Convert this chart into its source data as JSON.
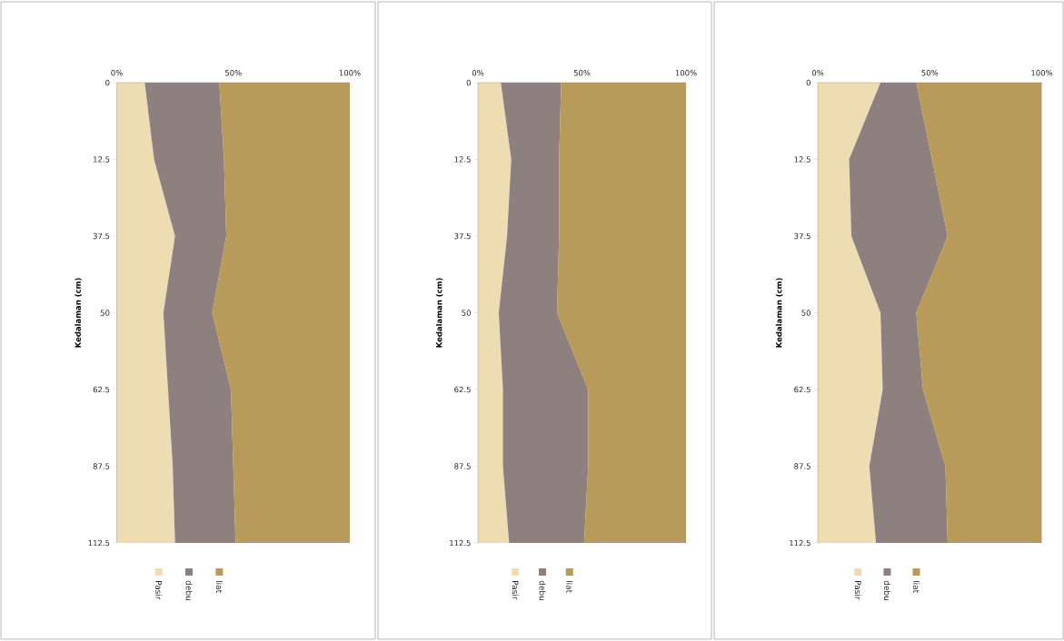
{
  "chart_data": [
    {
      "type": "area",
      "orientation": "horizontal",
      "stacked": true,
      "ylabel": "Kedalaman (cm)",
      "legend": "bottom",
      "categories": [
        "0",
        "12.5",
        "37.5",
        "50",
        "62.5",
        "87.5",
        "112.5"
      ],
      "xlim": [
        0,
        100
      ],
      "xticks": [
        {
          "value": 0,
          "label": "0%"
        },
        {
          "value": 50,
          "label": "50%"
        },
        {
          "value": 100,
          "label": "100%"
        }
      ],
      "series": [
        {
          "name": "Pasir",
          "color": "#eedcb3",
          "values": [
            12,
            16,
            25,
            20,
            22,
            24,
            25
          ]
        },
        {
          "name": "debu",
          "color": "#8f8080",
          "values": [
            32,
            30,
            22,
            21,
            27,
            26,
            26
          ]
        },
        {
          "name": "liat",
          "color": "#b89a5a",
          "values": [
            56,
            54,
            53,
            59,
            51,
            50,
            49
          ]
        }
      ]
    },
    {
      "type": "area",
      "orientation": "horizontal",
      "stacked": true,
      "ylabel": "Kedalaman (cm)",
      "legend": "bottom",
      "categories": [
        "0",
        "12.5",
        "37.5",
        "50",
        "62.5",
        "87.5",
        "112.5"
      ],
      "xlim": [
        0,
        100
      ],
      "xticks": [
        {
          "value": 0,
          "label": "0%"
        },
        {
          "value": 50,
          "label": "50%"
        },
        {
          "value": 100,
          "label": "100%"
        }
      ],
      "series": [
        {
          "name": "Pasir",
          "color": "#eedcb3",
          "values": [
            11,
            16,
            14,
            10,
            12,
            12,
            15
          ]
        },
        {
          "name": "debu",
          "color": "#8f8080",
          "values": [
            29,
            23,
            25,
            28,
            41,
            41,
            36
          ]
        },
        {
          "name": "liat",
          "color": "#b89a5a",
          "values": [
            60,
            61,
            61,
            62,
            47,
            47,
            49
          ]
        }
      ]
    },
    {
      "type": "area",
      "orientation": "horizontal",
      "stacked": true,
      "ylabel": "Kedalaman (cm)",
      "legend": "bottom",
      "categories": [
        "0",
        "12.5",
        "37.5",
        "50",
        "62.5",
        "87.5",
        "112.5"
      ],
      "xlim": [
        0,
        100
      ],
      "xticks": [
        {
          "value": 0,
          "label": "0%"
        },
        {
          "value": 50,
          "label": "50%"
        },
        {
          "value": 100,
          "label": "100%"
        }
      ],
      "series": [
        {
          "name": "Pasir",
          "color": "#eedcb3",
          "values": [
            28,
            14,
            15,
            28,
            29,
            23,
            26
          ]
        },
        {
          "name": "debu",
          "color": "#8f8080",
          "values": [
            16,
            37,
            43,
            16,
            18,
            34,
            32
          ]
        },
        {
          "name": "liat",
          "color": "#b89a5a",
          "values": [
            56,
            49,
            42,
            56,
            53,
            43,
            42
          ]
        }
      ]
    }
  ]
}
